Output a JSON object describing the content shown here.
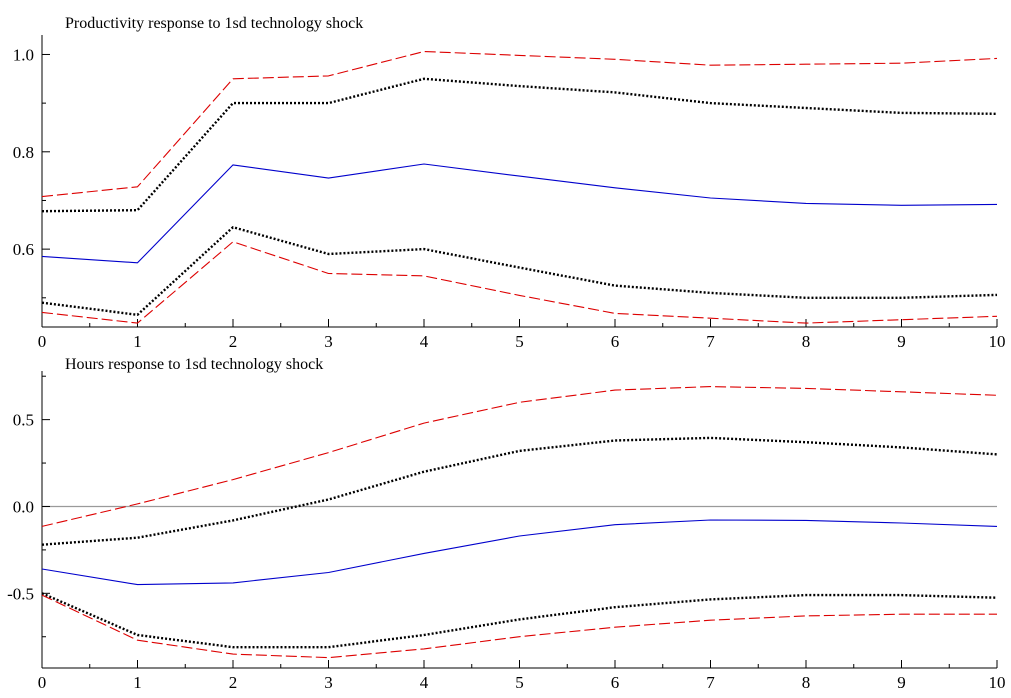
{
  "chart_data": [
    {
      "type": "line",
      "title": "Productivity response to 1sd technology shock",
      "xlabel": "",
      "ylabel": "",
      "xlim": [
        0,
        10
      ],
      "ylim": [
        0.44,
        1.04
      ],
      "x": [
        0,
        1,
        2,
        3,
        4,
        5,
        6,
        7,
        8,
        9,
        10
      ],
      "x_ticks": [
        "0",
        "1",
        "2",
        "3",
        "4",
        "5",
        "6",
        "7",
        "8",
        "9",
        "10"
      ],
      "y_tick_values": [
        0.6,
        0.8,
        1.0
      ],
      "y_ticks": [
        "0.6",
        "0.8",
        "1.0"
      ],
      "zero_line": false,
      "grid": false,
      "series": [
        {
          "role": "estimate",
          "color": "#0000cc",
          "dash": "solid",
          "values": [
            0.585,
            0.572,
            0.773,
            0.746,
            0.775,
            0.75,
            0.726,
            0.705,
            0.694,
            0.69,
            0.692
          ]
        },
        {
          "role": "upper-inner-band",
          "color": "#000000",
          "dash": "dotted",
          "values": [
            0.678,
            0.68,
            0.9,
            0.9,
            0.95,
            0.935,
            0.922,
            0.9,
            0.89,
            0.88,
            0.878
          ]
        },
        {
          "role": "lower-inner-band",
          "color": "#000000",
          "dash": "dotted",
          "values": [
            0.49,
            0.465,
            0.645,
            0.59,
            0.6,
            0.562,
            0.525,
            0.51,
            0.5,
            0.5,
            0.506
          ]
        },
        {
          "role": "upper-outer-band",
          "color": "#dd0000",
          "dash": "dashed",
          "values": [
            0.708,
            0.728,
            0.95,
            0.956,
            1.006,
            0.998,
            0.99,
            0.978,
            0.98,
            0.982,
            0.992
          ]
        },
        {
          "role": "lower-outer-band",
          "color": "#dd0000",
          "dash": "dashed",
          "values": [
            0.47,
            0.448,
            0.615,
            0.55,
            0.545,
            0.505,
            0.468,
            0.458,
            0.448,
            0.455,
            0.462
          ]
        }
      ]
    },
    {
      "type": "line",
      "title": "Hours response to 1sd technology shock",
      "xlabel": "",
      "ylabel": "",
      "xlim": [
        0,
        10
      ],
      "ylim": [
        -0.93,
        0.78
      ],
      "x": [
        0,
        1,
        2,
        3,
        4,
        5,
        6,
        7,
        8,
        9,
        10
      ],
      "x_ticks": [
        "0",
        "1",
        "2",
        "3",
        "4",
        "5",
        "6",
        "7",
        "8",
        "9",
        "10"
      ],
      "y_tick_values": [
        -0.5,
        0.0,
        0.5
      ],
      "y_ticks": [
        "-0.5",
        "0.0",
        "0.5"
      ],
      "zero_line": true,
      "grid": false,
      "series": [
        {
          "role": "estimate",
          "color": "#0000cc",
          "dash": "solid",
          "values": [
            -0.36,
            -0.45,
            -0.44,
            -0.38,
            -0.27,
            -0.17,
            -0.105,
            -0.078,
            -0.08,
            -0.095,
            -0.115
          ]
        },
        {
          "role": "upper-inner-band",
          "color": "#000000",
          "dash": "dotted",
          "values": [
            -0.22,
            -0.18,
            -0.08,
            0.04,
            0.2,
            0.32,
            0.38,
            0.395,
            0.37,
            0.34,
            0.3
          ]
        },
        {
          "role": "lower-inner-band",
          "color": "#000000",
          "dash": "dotted",
          "values": [
            -0.5,
            -0.74,
            -0.81,
            -0.81,
            -0.74,
            -0.65,
            -0.58,
            -0.535,
            -0.51,
            -0.51,
            -0.525
          ]
        },
        {
          "role": "upper-outer-band",
          "color": "#dd0000",
          "dash": "dashed",
          "values": [
            -0.115,
            0.015,
            0.155,
            0.31,
            0.48,
            0.6,
            0.67,
            0.69,
            0.68,
            0.66,
            0.64
          ]
        },
        {
          "role": "lower-outer-band",
          "color": "#dd0000",
          "dash": "dashed",
          "values": [
            -0.51,
            -0.77,
            -0.85,
            -0.87,
            -0.82,
            -0.75,
            -0.695,
            -0.655,
            -0.63,
            -0.62,
            -0.62
          ]
        }
      ]
    }
  ]
}
